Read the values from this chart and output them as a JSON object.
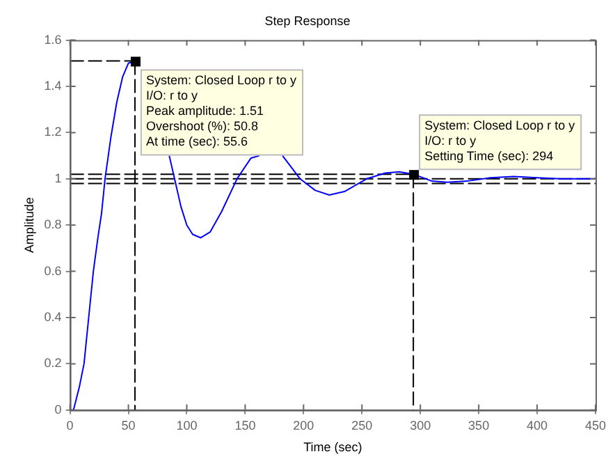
{
  "chart_data": {
    "type": "line",
    "title": "Step Response",
    "xlabel": "Time (sec)",
    "ylabel": "Amplitude",
    "x": [
      0,
      3,
      8,
      12,
      16,
      20,
      24,
      27,
      30,
      35,
      40,
      45,
      50,
      55.6,
      58,
      70,
      85,
      95,
      100,
      105,
      112,
      120,
      130,
      143,
      155,
      162,
      172,
      182,
      197,
      210,
      222,
      235,
      254,
      270,
      282,
      294,
      310,
      323,
      340,
      360,
      380,
      400,
      420,
      450
    ],
    "series": [
      {
        "color": "#0000ff",
        "values": [
          0,
          0,
          0.1,
          0.2,
          0.4,
          0.6,
          0.75,
          0.85,
          1.0,
          1.18,
          1.33,
          1.44,
          1.5,
          1.51,
          null,
          null,
          1.1,
          0.88,
          0.8,
          0.76,
          0.745,
          0.77,
          0.86,
          1.0,
          1.09,
          1.1,
          null,
          1.1,
          1.0,
          0.95,
          0.93,
          0.945,
          1.0,
          1.025,
          1.03,
          1.02,
          0.99,
          0.985,
          0.99,
          1.005,
          1.01,
          1.005,
          1.0,
          1.0
        ]
      }
    ],
    "xlim": [
      0,
      450
    ],
    "xticks": [
      0,
      50,
      100,
      150,
      200,
      250,
      300,
      350,
      400,
      450
    ],
    "ylim": [
      0,
      1.6
    ],
    "yticks": [
      0,
      0.2,
      0.4,
      0.6,
      0.8,
      1,
      1.2,
      1.4,
      1.6
    ],
    "grid": false,
    "legend": false,
    "marker": "none",
    "line_style": "solid",
    "ref_lines": [
      {
        "axis": "y",
        "value": 1.02,
        "line_style": "dashed",
        "color": "#000000"
      },
      {
        "axis": "y",
        "value": 0.98,
        "line_style": "dashed",
        "color": "#000000"
      },
      {
        "axis": "y",
        "value": 1,
        "line_style": "dashed",
        "color": "#000000"
      },
      {
        "axis": "y",
        "value": 1.51,
        "line_style": "dashed",
        "color": "#000000"
      },
      {
        "axis": "x",
        "value": 55.6,
        "line_style": "dashed",
        "color": "#000000"
      },
      {
        "axis": "x",
        "value": 294,
        "line_style": "dashed",
        "color": "#000000"
      }
    ],
    "annotations": [
      {
        "text": "System: Closed Loop r to y\nI/O: r to y\nPeak amplitude: 1.51\nOvershoot (%): 50.8\nAt time (sec): 55.6",
        "x": 55.6,
        "y": 1.51
      },
      {
        "text": "System: Closed Loop r to y\nI/O: r to y\nSetting Time (sec): 294",
        "x": 294,
        "y": 1.02
      }
    ]
  }
}
